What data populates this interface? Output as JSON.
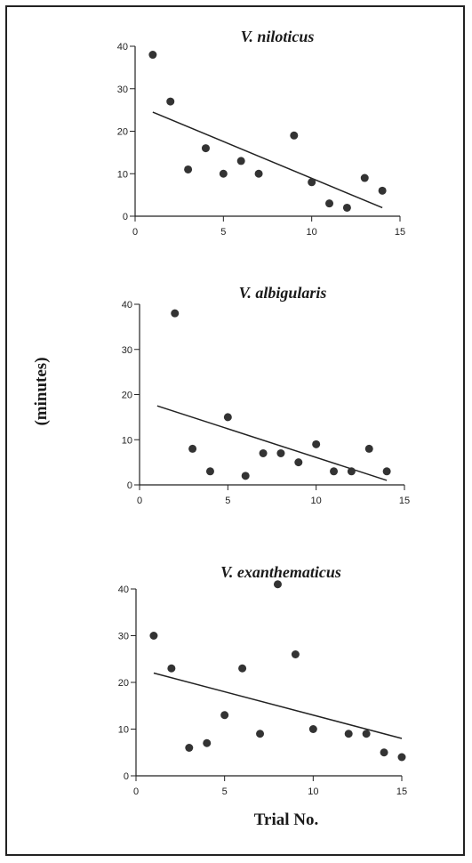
{
  "colors": {
    "ink": "#222222",
    "point": "#333333",
    "background": "#ffffff"
  },
  "y_axis_label": "(minutes)",
  "x_axis_label": "Trial No.",
  "chart_data": [
    {
      "type": "scatter",
      "title": "V. niloticus",
      "xlim": [
        0,
        15
      ],
      "ylim": [
        0,
        40
      ],
      "x_ticks": [
        0,
        5,
        10,
        15
      ],
      "y_ticks": [
        0,
        10,
        20,
        30,
        40
      ],
      "points": [
        {
          "x": 1,
          "y": 38
        },
        {
          "x": 2,
          "y": 27
        },
        {
          "x": 3,
          "y": 11
        },
        {
          "x": 4,
          "y": 16
        },
        {
          "x": 5,
          "y": 10
        },
        {
          "x": 6,
          "y": 13
        },
        {
          "x": 7,
          "y": 10
        },
        {
          "x": 9,
          "y": 19
        },
        {
          "x": 10,
          "y": 8
        },
        {
          "x": 11,
          "y": 3
        },
        {
          "x": 12,
          "y": 2
        },
        {
          "x": 13,
          "y": 9
        },
        {
          "x": 14,
          "y": 6
        }
      ],
      "trendline": {
        "x1": 1,
        "y1": 24.5,
        "x2": 14,
        "y2": 2
      }
    },
    {
      "type": "scatter",
      "title": "V. albigularis",
      "xlim": [
        0,
        15
      ],
      "ylim": [
        0,
        40
      ],
      "x_ticks": [
        0,
        5,
        10,
        15
      ],
      "y_ticks": [
        0,
        10,
        20,
        30,
        40
      ],
      "points": [
        {
          "x": 2,
          "y": 38
        },
        {
          "x": 3,
          "y": 8
        },
        {
          "x": 4,
          "y": 3
        },
        {
          "x": 5,
          "y": 15
        },
        {
          "x": 6,
          "y": 2
        },
        {
          "x": 7,
          "y": 7
        },
        {
          "x": 8,
          "y": 7
        },
        {
          "x": 9,
          "y": 5
        },
        {
          "x": 10,
          "y": 9
        },
        {
          "x": 11,
          "y": 3
        },
        {
          "x": 12,
          "y": 3
        },
        {
          "x": 13,
          "y": 8
        },
        {
          "x": 14,
          "y": 3
        }
      ],
      "trendline": {
        "x1": 1,
        "y1": 17.5,
        "x2": 14,
        "y2": 1
      }
    },
    {
      "type": "scatter",
      "title": "V. exanthematicus",
      "xlim": [
        0,
        15
      ],
      "ylim": [
        0,
        40
      ],
      "x_ticks": [
        0,
        5,
        10,
        15
      ],
      "y_ticks": [
        0,
        10,
        20,
        30,
        40
      ],
      "points": [
        {
          "x": 1,
          "y": 30
        },
        {
          "x": 2,
          "y": 23
        },
        {
          "x": 3,
          "y": 6
        },
        {
          "x": 4,
          "y": 7
        },
        {
          "x": 5,
          "y": 13
        },
        {
          "x": 6,
          "y": 23
        },
        {
          "x": 7,
          "y": 9
        },
        {
          "x": 8,
          "y": 41
        },
        {
          "x": 9,
          "y": 26
        },
        {
          "x": 10,
          "y": 10
        },
        {
          "x": 12,
          "y": 9
        },
        {
          "x": 13,
          "y": 9
        },
        {
          "x": 14,
          "y": 5
        },
        {
          "x": 15,
          "y": 4
        }
      ],
      "trendline": {
        "x1": 1,
        "y1": 22,
        "x2": 15,
        "y2": 8
      }
    }
  ]
}
